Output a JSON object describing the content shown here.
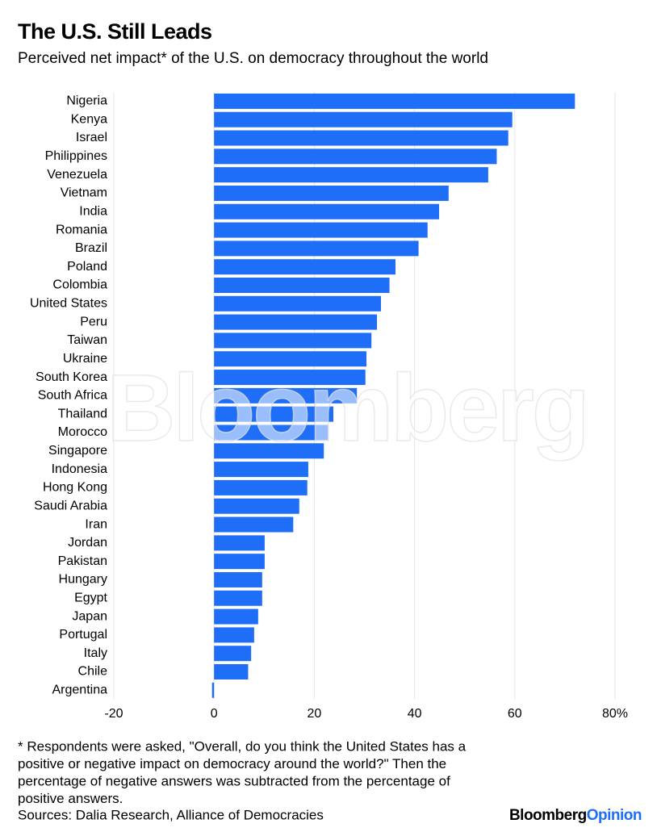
{
  "chart_data": {
    "type": "hbar",
    "title": "The U.S. Still Leads",
    "subtitle": "Perceived net impact* of the U.S. on democracy throughout the world",
    "categories": [
      "Nigeria",
      "Kenya",
      "Israel",
      "Philippines",
      "Venezuela",
      "Vietnam",
      "India",
      "Romania",
      "Brazil",
      "Poland",
      "Colombia",
      "United States",
      "Peru",
      "Taiwan",
      "Ukraine",
      "South Korea",
      "South Africa",
      "Thailand",
      "Morocco",
      "Singapore",
      "Indonesia",
      "Hong Kong",
      "Saudi Arabia",
      "Iran",
      "Jordan",
      "Pakistan",
      "Hungary",
      "Egypt",
      "Japan",
      "Portugal",
      "Italy",
      "Chile",
      "Argentina"
    ],
    "values": [
      72,
      59.5,
      58.7,
      56.4,
      54.7,
      46.8,
      44.9,
      42.6,
      40.8,
      36.2,
      35.0,
      33.3,
      32.5,
      31.4,
      30.4,
      30.2,
      28.5,
      23.8,
      22.8,
      21.9,
      18.8,
      18.6,
      17.0,
      15.8,
      10.1,
      10.1,
      9.6,
      9.6,
      8.8,
      8.0,
      7.4,
      6.8,
      -0.4
    ],
    "color": "#1f6ef7",
    "xlim": [
      -20,
      80
    ],
    "xticks": [
      -20,
      0,
      20,
      40,
      60,
      {
        "value": 80,
        "label": "80%"
      }
    ],
    "grid": true,
    "watermark": "Bloomberg",
    "footnote": [
      "* Respondents were asked, \"Overall, do you think the United States has a",
      "positive or negative impact on democracy around the world?\" Then the",
      "percentage of negative answers was subtracted from the percentage of",
      "positive answers."
    ],
    "source": "Sources: Dalia Research, Alliance of Democracies",
    "logo": [
      "Bloomberg",
      "Opinion"
    ]
  }
}
